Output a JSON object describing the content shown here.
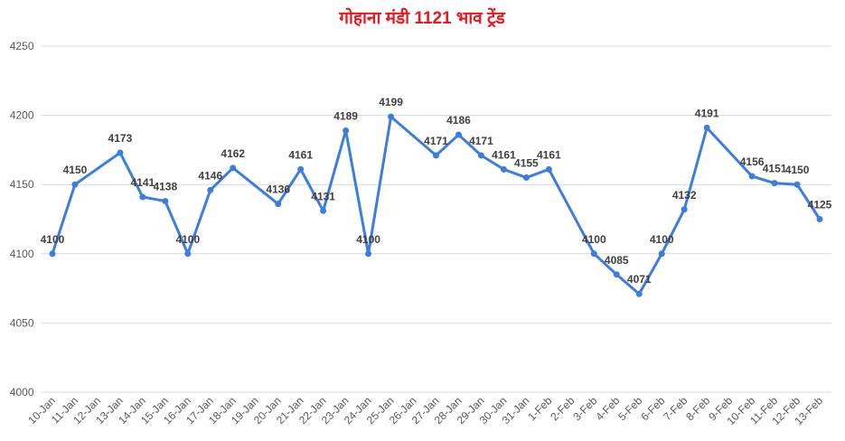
{
  "chart_data": {
    "type": "line",
    "title": "गोहाना मंडी 1121 भाव ट्रेंड",
    "categories": [
      "10-Jan",
      "11-Jan",
      "12-Jan",
      "13-Jan",
      "14-Jan",
      "15-Jan",
      "16-Jan",
      "17-Jan",
      "18-Jan",
      "19-Jan",
      "20-Jan",
      "21-Jan",
      "22-Jan",
      "23-Jan",
      "24-Jan",
      "25-Jan",
      "26-Jan",
      "27-Jan",
      "28-Jan",
      "29-Jan",
      "30-Jan",
      "31-Jan",
      "1-Feb",
      "2-Feb",
      "3-Feb",
      "4-Feb",
      "5-Feb",
      "6-Feb",
      "7-Feb",
      "8-Feb",
      "9-Feb",
      "10-Feb",
      "11-Feb",
      "12-Feb",
      "13-Feb"
    ],
    "values": [
      4100,
      4150,
      null,
      4173,
      4141,
      4138,
      4100,
      4146,
      4162,
      null,
      4136,
      4161,
      4131,
      4189,
      4100,
      4199,
      null,
      4171,
      4186,
      4171,
      4161,
      4155,
      4161,
      null,
      4100,
      4085,
      4071,
      4100,
      4132,
      4191,
      null,
      4156,
      4151,
      4150,
      4125
    ],
    "color": "#3c7ddf",
    "ylim": [
      4000,
      4250
    ],
    "yticks": [
      4000,
      4050,
      4100,
      4150,
      4200,
      4250
    ],
    "grid": true
  }
}
